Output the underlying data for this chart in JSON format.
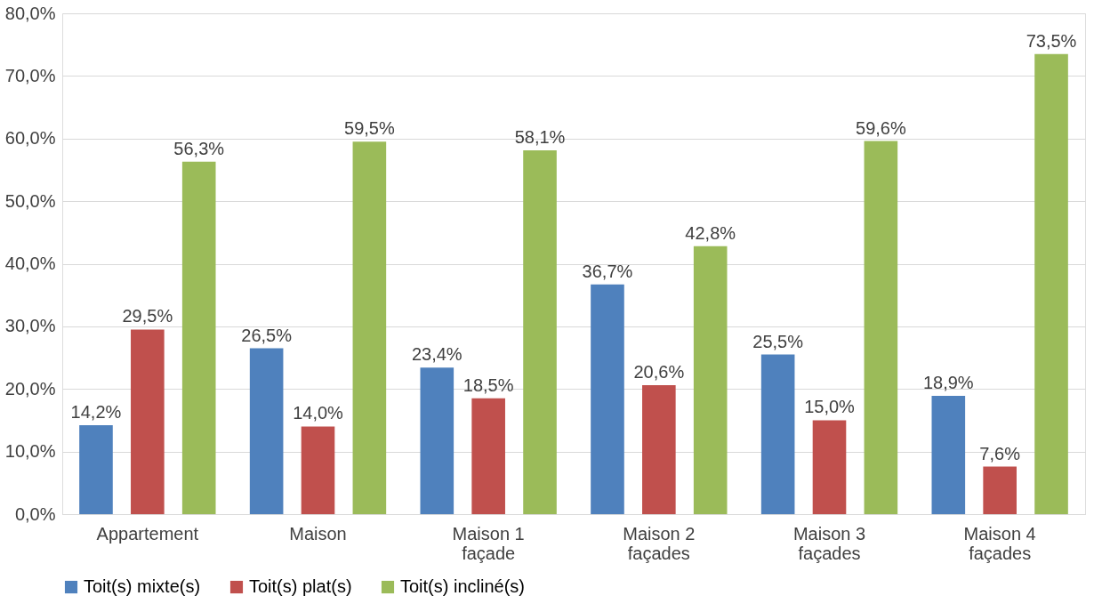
{
  "chart_data": {
    "type": "bar",
    "categories": [
      "Appartement",
      "Maison",
      "Maison 1\nfaçade",
      "Maison 2\nfaçades",
      "Maison 3\nfaçades",
      "Maison 4\nfaçades"
    ],
    "series": [
      {
        "name": "Toit(s) mixte(s)",
        "color": "#4f81bd",
        "values": [
          14.2,
          26.5,
          23.4,
          36.7,
          25.5,
          18.9
        ],
        "value_labels": [
          "14,2%",
          "26,5%",
          "23,4%",
          "36,7%",
          "25,5%",
          "18,9%"
        ]
      },
      {
        "name": "Toit(s) plat(s)",
        "color": "#c0504d",
        "values": [
          29.5,
          14.0,
          18.5,
          20.6,
          15.0,
          7.6
        ],
        "value_labels": [
          "29,5%",
          "14,0%",
          "18,5%",
          "20,6%",
          "15,0%",
          "7,6%"
        ]
      },
      {
        "name": "Toit(s) incliné(s)",
        "color": "#9bbb59",
        "values": [
          56.3,
          59.5,
          58.1,
          42.8,
          59.6,
          73.5
        ],
        "value_labels": [
          "56,3%",
          "59,5%",
          "58,1%",
          "42,8%",
          "59,6%",
          "73,5%"
        ]
      }
    ],
    "ylim": [
      0,
      80
    ],
    "yticks": [
      {
        "value": 0,
        "label": "0,0%"
      },
      {
        "value": 10,
        "label": "10,0%"
      },
      {
        "value": 20,
        "label": "20,0%"
      },
      {
        "value": 30,
        "label": "30,0%"
      },
      {
        "value": 40,
        "label": "40,0%"
      },
      {
        "value": 50,
        "label": "50,0%"
      },
      {
        "value": 60,
        "label": "60,0%"
      },
      {
        "value": 70,
        "label": "70,0%"
      },
      {
        "value": 80,
        "label": "80,0%"
      }
    ],
    "grid": "y",
    "legend": "bottom"
  }
}
